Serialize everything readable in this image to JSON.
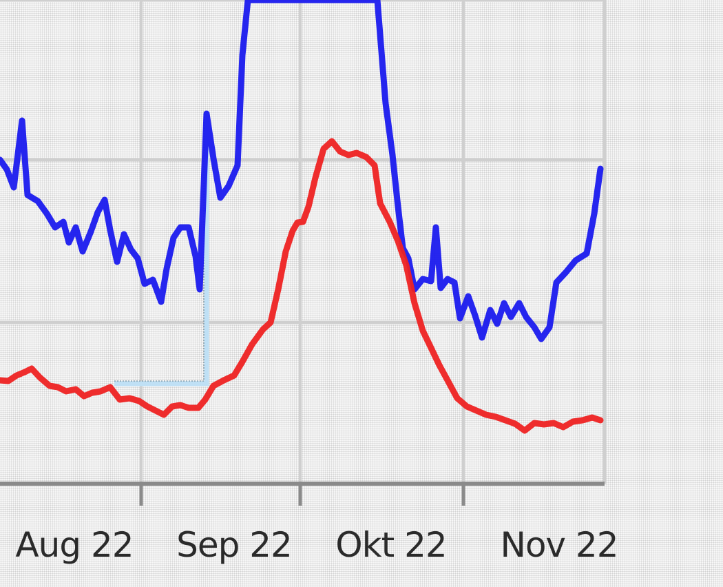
{
  "chart_data": {
    "type": "line",
    "title": "",
    "xlabel": "",
    "ylabel": "",
    "x_tick_labels": [
      "Aug 22",
      "Sep 22",
      "Okt 22",
      "Nov 22"
    ],
    "grid": true,
    "legend": "none",
    "colors": {
      "series_blue": "#1a1aee",
      "series_red": "#ee2222",
      "highlight": "#bfe0f5",
      "grid": "#cfcfcf",
      "axis": "#8a8a8a"
    },
    "series": [
      {
        "color": "#1a1aee",
        "values": [
          [
            0,
            232
          ],
          [
            10,
            246
          ],
          [
            20,
            272
          ],
          [
            32,
            175
          ],
          [
            40,
            283
          ],
          [
            55,
            292
          ],
          [
            68,
            310
          ],
          [
            80,
            330
          ],
          [
            92,
            322
          ],
          [
            100,
            352
          ],
          [
            110,
            330
          ],
          [
            120,
            365
          ],
          [
            132,
            336
          ],
          [
            142,
            308
          ],
          [
            152,
            290
          ],
          [
            160,
            334
          ],
          [
            170,
            380
          ],
          [
            180,
            340
          ],
          [
            190,
            362
          ],
          [
            200,
            375
          ],
          [
            210,
            412
          ],
          [
            222,
            406
          ],
          [
            234,
            438
          ],
          [
            242,
            390
          ],
          [
            252,
            345
          ],
          [
            262,
            330
          ],
          [
            274,
            330
          ],
          [
            284,
            372
          ],
          [
            290,
            420
          ],
          [
            300,
            165
          ],
          [
            310,
            230
          ],
          [
            320,
            287
          ],
          [
            332,
            270
          ],
          [
            345,
            240
          ],
          [
            352,
            80
          ],
          [
            360,
            0
          ],
          [
            548,
            0
          ],
          [
            560,
            150
          ],
          [
            570,
            225
          ],
          [
            578,
            300
          ],
          [
            585,
            360
          ],
          [
            593,
            375
          ],
          [
            602,
            420
          ],
          [
            614,
            405
          ],
          [
            626,
            408
          ],
          [
            633,
            330
          ],
          [
            640,
            418
          ],
          [
            650,
            405
          ],
          [
            660,
            410
          ],
          [
            668,
            462
          ],
          [
            680,
            430
          ],
          [
            690,
            458
          ],
          [
            700,
            490
          ],
          [
            712,
            450
          ],
          [
            722,
            470
          ],
          [
            732,
            440
          ],
          [
            742,
            460
          ],
          [
            754,
            440
          ],
          [
            764,
            460
          ],
          [
            776,
            475
          ],
          [
            786,
            492
          ],
          [
            798,
            475
          ],
          [
            808,
            410
          ],
          [
            822,
            395
          ],
          [
            836,
            378
          ],
          [
            852,
            368
          ],
          [
            863,
            310
          ],
          [
            872,
            245
          ]
        ]
      },
      {
        "color": "#ee2222",
        "values": [
          [
            0,
            552
          ],
          [
            12,
            553
          ],
          [
            24,
            545
          ],
          [
            36,
            540
          ],
          [
            46,
            535
          ],
          [
            58,
            548
          ],
          [
            72,
            560
          ],
          [
            84,
            562
          ],
          [
            96,
            568
          ],
          [
            110,
            565
          ],
          [
            122,
            575
          ],
          [
            134,
            570
          ],
          [
            146,
            568
          ],
          [
            160,
            562
          ],
          [
            174,
            580
          ],
          [
            188,
            578
          ],
          [
            202,
            582
          ],
          [
            214,
            590
          ],
          [
            226,
            596
          ],
          [
            238,
            602
          ],
          [
            250,
            590
          ],
          [
            262,
            588
          ],
          [
            274,
            592
          ],
          [
            288,
            592
          ],
          [
            298,
            580
          ],
          [
            310,
            560
          ],
          [
            325,
            552
          ],
          [
            340,
            545
          ],
          [
            352,
            525
          ],
          [
            366,
            500
          ],
          [
            382,
            478
          ],
          [
            393,
            468
          ],
          [
            404,
            420
          ],
          [
            415,
            365
          ],
          [
            425,
            335
          ],
          [
            432,
            323
          ],
          [
            440,
            322
          ],
          [
            448,
            300
          ],
          [
            458,
            258
          ],
          [
            470,
            216
          ],
          [
            482,
            205
          ],
          [
            494,
            220
          ],
          [
            506,
            225
          ],
          [
            518,
            222
          ],
          [
            532,
            228
          ],
          [
            544,
            240
          ],
          [
            552,
            295
          ],
          [
            566,
            322
          ],
          [
            578,
            350
          ],
          [
            590,
            385
          ],
          [
            602,
            440
          ],
          [
            614,
            480
          ],
          [
            626,
            505
          ],
          [
            638,
            530
          ],
          [
            650,
            552
          ],
          [
            664,
            578
          ],
          [
            678,
            590
          ],
          [
            692,
            596
          ],
          [
            706,
            602
          ],
          [
            720,
            605
          ],
          [
            734,
            610
          ],
          [
            748,
            615
          ],
          [
            762,
            625
          ],
          [
            776,
            614
          ],
          [
            790,
            616
          ],
          [
            804,
            614
          ],
          [
            818,
            620
          ],
          [
            832,
            612
          ],
          [
            846,
            610
          ],
          [
            860,
            606
          ],
          [
            872,
            610
          ]
        ]
      }
    ]
  }
}
